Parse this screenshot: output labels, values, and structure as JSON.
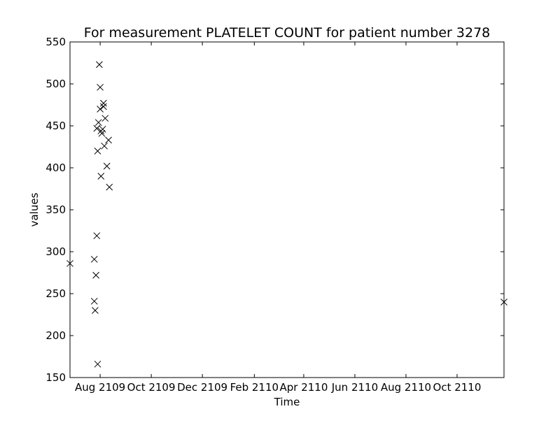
{
  "chart_data": {
    "type": "scatter",
    "title": "For measurement PLATELET COUNT for patient number 3278",
    "xlabel": "Time",
    "ylabel": "values",
    "marker": "x",
    "marker_color": "#000000",
    "grid": false,
    "x_axis_type": "date",
    "xlim": [
      "2109-06-26",
      "2110-11-26"
    ],
    "ylim": [
      150,
      550
    ],
    "x_tick_labels": [
      "Aug 2109",
      "Oct 2109",
      "Dec 2109",
      "Feb 2110",
      "Apr 2110",
      "Jun 2110",
      "Aug 2110",
      "Oct 2110"
    ],
    "x_tick_dates": [
      "2109-08-01",
      "2109-10-01",
      "2109-12-01",
      "2110-02-01",
      "2110-04-01",
      "2110-06-01",
      "2110-08-01",
      "2110-10-01"
    ],
    "y_ticks": [
      150,
      200,
      250,
      300,
      350,
      400,
      450,
      500,
      550
    ],
    "points": [
      {
        "x": "2109-06-26",
        "y": 286
      },
      {
        "x": "2109-07-25",
        "y": 291
      },
      {
        "x": "2109-07-25",
        "y": 241
      },
      {
        "x": "2109-07-26",
        "y": 230
      },
      {
        "x": "2109-07-27",
        "y": 272
      },
      {
        "x": "2109-07-28",
        "y": 319
      },
      {
        "x": "2109-07-28",
        "y": 447
      },
      {
        "x": "2109-07-29",
        "y": 420
      },
      {
        "x": "2109-07-29",
        "y": 166
      },
      {
        "x": "2109-07-30",
        "y": 454
      },
      {
        "x": "2109-07-31",
        "y": 523
      },
      {
        "x": "2109-08-01",
        "y": 496
      },
      {
        "x": "2109-08-01",
        "y": 470
      },
      {
        "x": "2109-08-02",
        "y": 444
      },
      {
        "x": "2109-08-02",
        "y": 390
      },
      {
        "x": "2109-08-03",
        "y": 441
      },
      {
        "x": "2109-08-04",
        "y": 446
      },
      {
        "x": "2109-08-05",
        "y": 477
      },
      {
        "x": "2109-08-05",
        "y": 473
      },
      {
        "x": "2109-08-06",
        "y": 426
      },
      {
        "x": "2109-08-07",
        "y": 459
      },
      {
        "x": "2109-08-09",
        "y": 402
      },
      {
        "x": "2109-08-11",
        "y": 433
      },
      {
        "x": "2109-08-12",
        "y": 377
      },
      {
        "x": "2110-11-26",
        "y": 240
      }
    ]
  }
}
